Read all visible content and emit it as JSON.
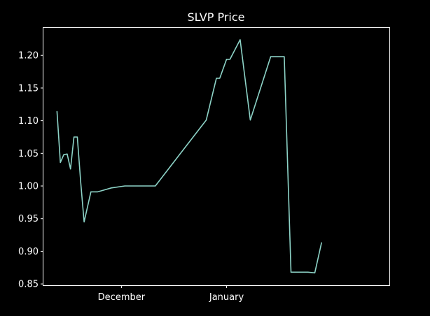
{
  "chart_data": {
    "type": "line",
    "title": "SLVP Price",
    "xlabel": "",
    "ylabel": "",
    "grid": false,
    "ylim": [
      0.848,
      1.242
    ],
    "xlim": [
      "2023-11-08",
      "2024-02-18"
    ],
    "yticks": [
      "0.85",
      "0.90",
      "0.95",
      "1.00",
      "1.05",
      "1.10",
      "1.15",
      "1.20"
    ],
    "xticks": [
      {
        "date": "2023-12-01",
        "label": "December"
      },
      {
        "date": "2024-01-01",
        "label": "January"
      }
    ],
    "series": [
      {
        "color": "#8dd3c7",
        "x": [
          "2023-11-12",
          "2023-11-13",
          "2023-11-14",
          "2023-11-15",
          "2023-11-16",
          "2023-11-17",
          "2023-11-18",
          "2023-11-19",
          "2023-11-20",
          "2023-11-22",
          "2023-11-24",
          "2023-11-26",
          "2023-11-28",
          "2023-12-02",
          "2023-12-05",
          "2023-12-08",
          "2023-12-11",
          "2023-12-26",
          "2023-12-29",
          "2023-12-30",
          "2024-01-01",
          "2024-01-02",
          "2024-01-05",
          "2024-01-08",
          "2024-01-14",
          "2024-01-17",
          "2024-01-18",
          "2024-01-20",
          "2024-01-22",
          "2024-01-25",
          "2024-01-27",
          "2024-01-29"
        ],
        "y": [
          1.114,
          1.036,
          1.048,
          1.049,
          1.026,
          1.075,
          1.075,
          1.005,
          0.945,
          0.991,
          0.991,
          0.994,
          0.997,
          1.0,
          1.0,
          1.0,
          1.0,
          1.101,
          1.165,
          1.165,
          1.194,
          1.194,
          1.224,
          1.101,
          1.198,
          1.198,
          1.198,
          0.868,
          0.868,
          0.868,
          0.867,
          0.913
        ]
      }
    ]
  }
}
